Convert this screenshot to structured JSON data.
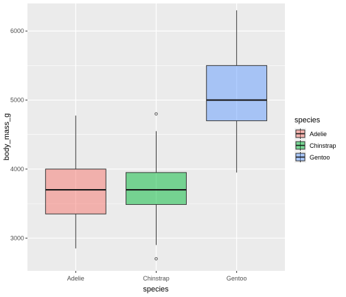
{
  "chart_data": {
    "type": "boxplot",
    "xlabel": "species",
    "ylabel": "body_mass_g",
    "ylim": [
      2525,
      6400
    ],
    "yticks": [
      3000,
      4000,
      5000,
      6000
    ],
    "ytick_labels": [
      "3000",
      "4000",
      "5000",
      "6000"
    ],
    "grid": true,
    "legend": {
      "title": "species",
      "position": "right"
    },
    "categories": [
      "Adelie",
      "Chinstrap",
      "Gentoo"
    ],
    "boxes": [
      {
        "name": "Adelie",
        "lower_whisker": 2850,
        "q1": 3350,
        "median": 3700,
        "q3": 4000,
        "upper_whisker": 4775,
        "outliers": [],
        "color": "#F8766D"
      },
      {
        "name": "Chinstrap",
        "lower_whisker": 2900,
        "q1": 3487,
        "median": 3700,
        "q3": 3950,
        "upper_whisker": 4550,
        "outliers": [
          4800,
          2700
        ],
        "color": "#00BA38"
      },
      {
        "name": "Gentoo",
        "lower_whisker": 3950,
        "q1": 4700,
        "median": 5000,
        "q3": 5500,
        "upper_whisker": 6300,
        "outliers": [],
        "color": "#619CFF"
      }
    ]
  }
}
